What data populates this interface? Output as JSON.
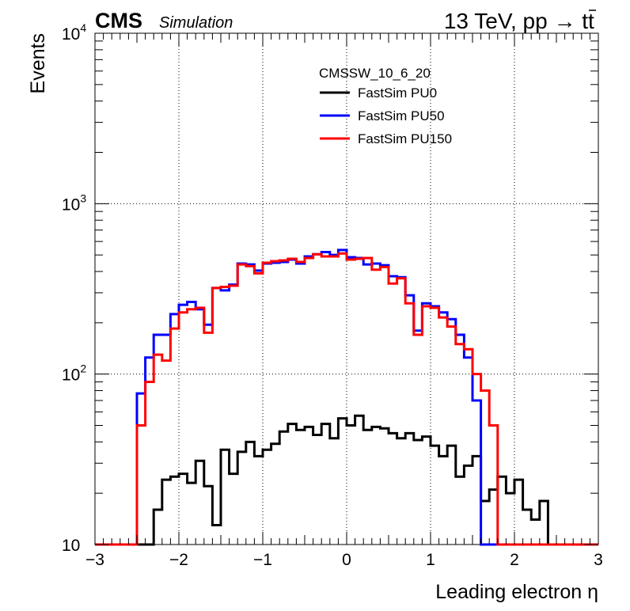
{
  "header": {
    "experiment": "CMS",
    "status": "Simulation",
    "energy": "13 TeV, pp → t",
    "energy_tbar": "t"
  },
  "chart_data": {
    "type": "line",
    "subtype": "step-histogram",
    "xlabel": "Leading electron η",
    "ylabel": "Events",
    "xlim": [
      -3,
      3
    ],
    "ylim": [
      10,
      10000
    ],
    "ylog": true,
    "grid": true,
    "x_ticks": [
      -3,
      -2,
      -1,
      0,
      1,
      2,
      3
    ],
    "x_tick_labels": [
      "−3",
      "−2",
      "−1",
      "0",
      "1",
      "2",
      "3"
    ],
    "y_ticks": [
      {
        "value": 10,
        "base": "10",
        "exp": ""
      },
      {
        "value": 100,
        "base": "10",
        "exp": "2"
      },
      {
        "value": 1000,
        "base": "10",
        "exp": "3"
      },
      {
        "value": 10000,
        "base": "10",
        "exp": "4"
      }
    ],
    "legend_header": "CMSSW_10_6_20",
    "legend_position": "top-center",
    "bin_edges": [
      -3.0,
      -2.9,
      -2.8,
      -2.7,
      -2.6,
      -2.5,
      -2.4,
      -2.3,
      -2.2,
      -2.1,
      -2.0,
      -1.9,
      -1.8,
      -1.7,
      -1.6,
      -1.5,
      -1.4,
      -1.3,
      -1.2,
      -1.1,
      -1.0,
      -0.9,
      -0.8,
      -0.7,
      -0.6,
      -0.5,
      -0.4,
      -0.3,
      -0.2,
      -0.1,
      0.0,
      0.1,
      0.2,
      0.3,
      0.4,
      0.5,
      0.6,
      0.7,
      0.8,
      0.9,
      1.0,
      1.1,
      1.2,
      1.3,
      1.4,
      1.5,
      1.6,
      1.7,
      1.8,
      1.9,
      2.0,
      2.1,
      2.2,
      2.3,
      2.4,
      2.5,
      2.6,
      2.7,
      2.8,
      2.9,
      3.0
    ],
    "series": [
      {
        "name": "FastSim PU0",
        "color": "#000000",
        "values": [
          0,
          0,
          0,
          0,
          0,
          0,
          10,
          16,
          24,
          25,
          26,
          23,
          31,
          22,
          13,
          36,
          26,
          35,
          40,
          33,
          36,
          39,
          46,
          51,
          47,
          49,
          44,
          51,
          42,
          55,
          50,
          57,
          47,
          49,
          48,
          45,
          42,
          45,
          41,
          43,
          38,
          33,
          38,
          25,
          29,
          33,
          18,
          21,
          25,
          20,
          24,
          16,
          14,
          18,
          10,
          0,
          0,
          0,
          0,
          0
        ]
      },
      {
        "name": "FastSim PU50",
        "color": "#0000ff",
        "values": [
          0,
          0,
          0,
          0,
          0,
          77,
          125,
          170,
          170,
          225,
          255,
          265,
          240,
          195,
          320,
          310,
          335,
          445,
          440,
          405,
          445,
          450,
          455,
          470,
          445,
          490,
          505,
          520,
          500,
          535,
          485,
          480,
          440,
          445,
          435,
          375,
          370,
          290,
          180,
          260,
          250,
          230,
          210,
          170,
          125,
          70,
          0,
          0,
          0,
          0,
          0,
          0,
          0,
          0,
          0,
          0,
          0,
          0,
          0,
          0
        ]
      },
      {
        "name": "FastSim PU150",
        "color": "#ff0000",
        "values": [
          0,
          0,
          0,
          0,
          0,
          50,
          90,
          130,
          120,
          185,
          230,
          240,
          245,
          175,
          320,
          325,
          330,
          440,
          430,
          390,
          450,
          460,
          465,
          475,
          455,
          480,
          505,
          490,
          490,
          510,
          470,
          475,
          480,
          410,
          425,
          340,
          365,
          260,
          170,
          250,
          245,
          215,
          190,
          150,
          140,
          100,
          80,
          50,
          0,
          0,
          0,
          0,
          0,
          0,
          0,
          0,
          0,
          0,
          0,
          0
        ]
      }
    ]
  }
}
